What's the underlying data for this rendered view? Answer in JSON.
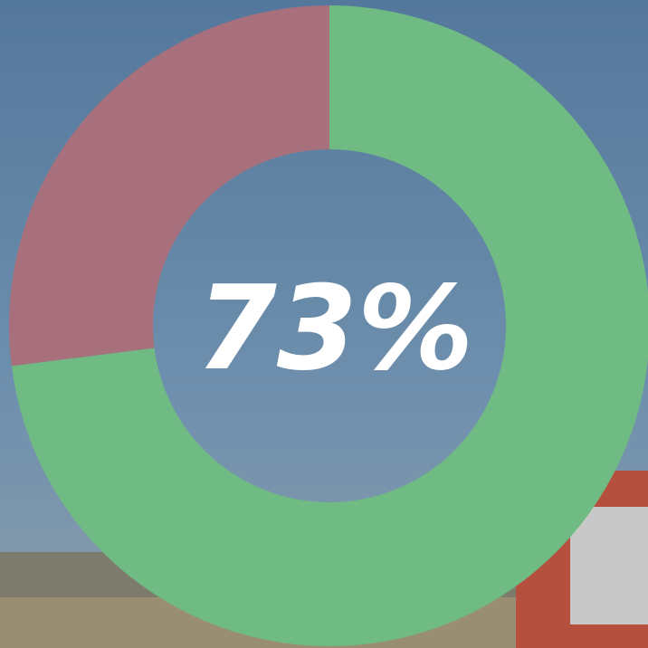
{
  "chart_data": {
    "type": "donut",
    "values": [
      73,
      27
    ],
    "colors": [
      "#6fbb83",
      "#a8707c"
    ],
    "center_label": "73%"
  }
}
